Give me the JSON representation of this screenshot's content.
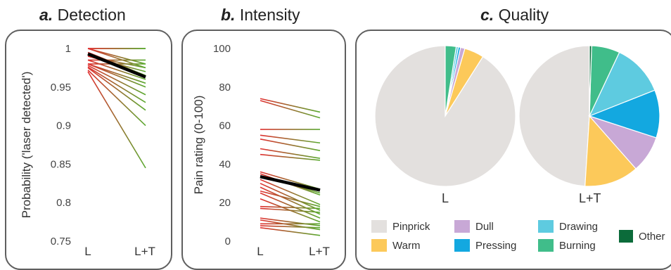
{
  "panels": {
    "a": {
      "letter": "a.",
      "name": "Detection"
    },
    "b": {
      "letter": "b.",
      "name": "Intensity"
    },
    "c": {
      "letter": "c.",
      "name": "Quality"
    }
  },
  "colors": {
    "start": "#e03030",
    "end": "#5aaa30",
    "mean": "#000000",
    "frame": "#5f5f5f"
  },
  "chart_data": [
    {
      "type": "line",
      "panel": "a",
      "ylabel": "Probability ('laser detected')",
      "categories": [
        "L",
        "L+T"
      ],
      "ylim": [
        0.75,
        1.0
      ],
      "yticks": [
        "0.75",
        "0.8",
        "0.85",
        "0.9",
        "0.95",
        "1"
      ],
      "subjects": [
        [
          1.0,
          1.0
        ],
        [
          1.0,
          1.0
        ],
        [
          1.0,
          1.0
        ],
        [
          1.0,
          0.98
        ],
        [
          1.0,
          0.975
        ],
        [
          0.995,
          0.965
        ],
        [
          0.99,
          0.97
        ],
        [
          0.985,
          0.96
        ],
        [
          0.98,
          0.955
        ],
        [
          0.98,
          0.95
        ],
        [
          0.978,
          0.94
        ],
        [
          0.976,
          0.93
        ],
        [
          0.975,
          0.92
        ],
        [
          0.972,
          0.9
        ],
        [
          0.97,
          0.845
        ],
        [
          0.985,
          0.985
        ],
        [
          0.99,
          0.975
        ],
        [
          0.98,
          0.98
        ]
      ],
      "mean": [
        0.993,
        0.963
      ]
    },
    {
      "type": "line",
      "panel": "b",
      "ylabel": "Pain rating (0-100)",
      "categories": [
        "L",
        "L+T"
      ],
      "ylim": [
        0,
        100
      ],
      "yticks": [
        "0",
        "20",
        "40",
        "60",
        "80",
        "100"
      ],
      "subjects": [
        [
          74,
          67
        ],
        [
          73,
          64
        ],
        [
          58,
          58
        ],
        [
          55,
          51
        ],
        [
          53,
          47
        ],
        [
          48,
          43
        ],
        [
          45,
          42
        ],
        [
          36,
          27
        ],
        [
          35,
          24
        ],
        [
          34,
          25
        ],
        [
          32,
          19
        ],
        [
          30,
          16
        ],
        [
          28,
          14
        ],
        [
          26,
          18
        ],
        [
          25,
          12
        ],
        [
          22,
          10
        ],
        [
          18,
          17
        ],
        [
          17,
          15
        ],
        [
          12,
          8
        ],
        [
          11,
          6
        ],
        [
          9,
          9
        ],
        [
          8,
          7
        ],
        [
          7,
          3
        ]
      ],
      "mean": [
        33.5,
        26.5
      ]
    },
    {
      "type": "pie",
      "panel": "c",
      "categories": [
        "Pinprick",
        "Warm",
        "Dull",
        "Pressing",
        "Drawing",
        "Burning",
        "Other"
      ],
      "colors": [
        "#e3e0de",
        "#fcc95a",
        "#c8a8d6",
        "#13a8e0",
        "#5ecbe0",
        "#40bd8a",
        "#0b6b3a"
      ],
      "pies": [
        {
          "label": "L",
          "values": [
            91,
            4.5,
            1,
            0.5,
            0.5,
            2.5,
            0
          ]
        },
        {
          "label": "L+T",
          "values": [
            49,
            12.5,
            8.5,
            11,
            12,
            6.5,
            0.5
          ]
        }
      ],
      "legend_order": [
        "Pinprick",
        "Dull",
        "Drawing",
        "Other",
        "Warm",
        "Pressing",
        "Burning"
      ]
    }
  ]
}
